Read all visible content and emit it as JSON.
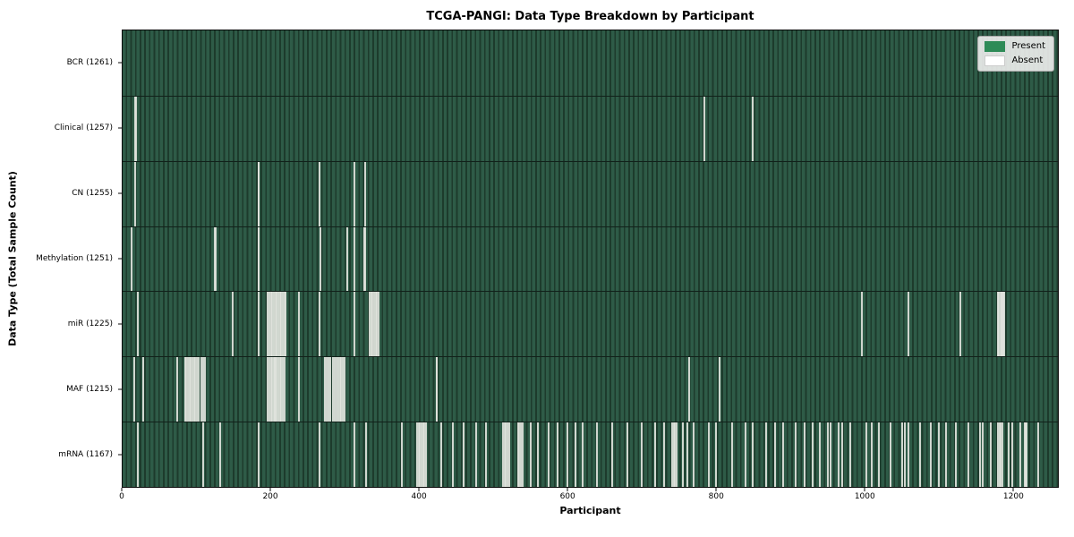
{
  "chart_data": {
    "type": "heatmap",
    "title": "TCGA-PANGI: Data Type Breakdown by Participant",
    "xlabel": "Participant",
    "ylabel": "Data Type (Total Sample Count)",
    "x_ticks": [
      0,
      200,
      400,
      600,
      800,
      1000,
      1200
    ],
    "x_range": [
      0,
      1261
    ],
    "total_participants": 1261,
    "legend": {
      "position": "upper right",
      "entries": [
        {
          "label": "Present",
          "color": "#2e8b57"
        },
        {
          "label": "Absent",
          "color": "#ffffff"
        }
      ]
    },
    "colors": {
      "present": "#2e8b57",
      "present_stripe_light": "#2e5b47",
      "present_stripe_dark": "#1d3b2c",
      "absent_line": "#dfe3dc",
      "axes_border": "#0a0a0a",
      "legend_background": "#f0f0ee"
    },
    "rows": [
      {
        "label": "BCR (1261)",
        "data_type": "BCR",
        "sample_count": 1261,
        "absent_participants": []
      },
      {
        "label": "Clinical (1257)",
        "data_type": "Clinical",
        "sample_count": 1257,
        "absent_participants": [
          17,
          18,
          784,
          850
        ]
      },
      {
        "label": "CN (1255)",
        "data_type": "CN",
        "sample_count": 1255,
        "absent_participants": [
          17,
          183,
          184,
          265,
          313,
          327
        ]
      },
      {
        "label": "Methylation (1251)",
        "data_type": "Methylation",
        "sample_count": 1251,
        "absent_participants": [
          12,
          124,
          125,
          183,
          184,
          267,
          303,
          313,
          326,
          327
        ]
      },
      {
        "label": "miR (1225)",
        "data_type": "miR",
        "sample_count": 1225,
        "absent_participants": [
          20,
          149,
          183,
          196,
          198,
          200,
          202,
          204,
          206,
          208,
          210,
          212,
          214,
          216,
          218,
          220,
          238,
          265,
          313,
          333,
          335,
          337,
          339,
          341,
          343,
          345,
          997,
          1059,
          1129,
          1180,
          1181,
          1184,
          1185,
          1186,
          1187,
          1188
        ]
      },
      {
        "label": "MAF (1215)",
        "data_type": "MAF",
        "sample_count": 1215,
        "absent_participants": [
          16,
          28,
          74,
          84,
          86,
          88,
          90,
          92,
          94,
          96,
          98,
          100,
          103,
          106,
          109,
          111,
          196,
          198,
          200,
          202,
          204,
          205,
          206,
          208,
          210,
          212,
          214,
          216,
          218,
          238,
          273,
          275,
          277,
          280,
          283,
          286,
          289,
          291,
          293,
          295,
          297,
          299,
          423,
          424,
          764,
          805
        ]
      },
      {
        "label": "mRNA (1167)",
        "data_type": "mRNA",
        "sample_count": 1167,
        "absent_participants": [
          20,
          108,
          132,
          183,
          265,
          313,
          328,
          376,
          397,
          399,
          401,
          403,
          405,
          407,
          409,
          430,
          445,
          460,
          477,
          490,
          513,
          515,
          517,
          519,
          521,
          533,
          535,
          537,
          539,
          550,
          560,
          574,
          587,
          600,
          610,
          620,
          640,
          660,
          680,
          700,
          718,
          730,
          741,
          743,
          745,
          747,
          755,
          762,
          770,
          790,
          800,
          822,
          840,
          850,
          868,
          880,
          890,
          907,
          919,
          930,
          940,
          951,
          955,
          965,
          970,
          981,
          1003,
          1010,
          1020,
          1035,
          1051,
          1055,
          1060,
          1075,
          1090,
          1100,
          1110,
          1123,
          1140,
          1156,
          1160,
          1170,
          1180,
          1182,
          1184,
          1186,
          1195,
          1200,
          1210,
          1216,
          1217,
          1218,
          1219,
          1235
        ]
      }
    ]
  }
}
